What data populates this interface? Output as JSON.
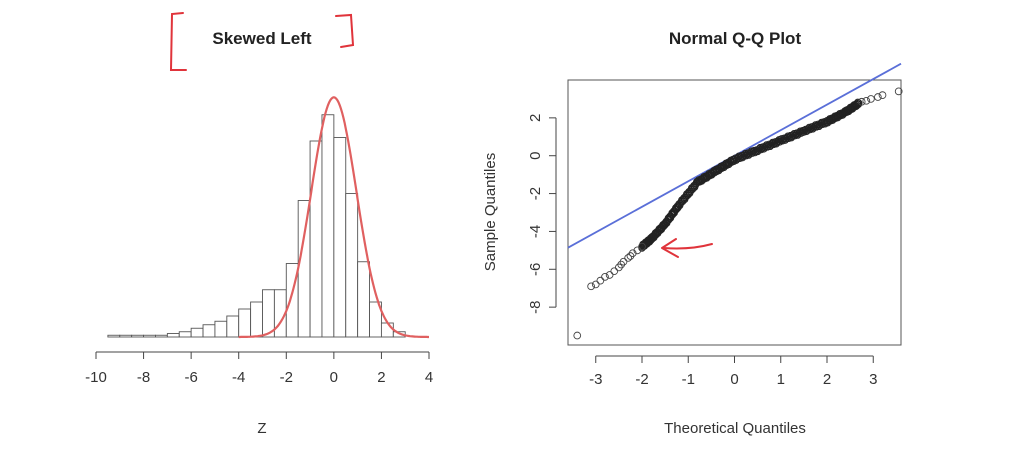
{
  "chart_data": [
    {
      "type": "bar",
      "title": "Skewed Left",
      "xlabel": "Z",
      "ylabel": "",
      "xlim": [
        -10,
        4
      ],
      "x_ticks": [
        "-10",
        "-8",
        "-6",
        "-4",
        "-2",
        "0",
        "2",
        "4"
      ],
      "bin_width": 0.5,
      "bin_starts": [
        -9.5,
        -9.0,
        -8.5,
        -8.0,
        -7.5,
        -7.0,
        -6.5,
        -6.0,
        -5.5,
        -5.0,
        -4.5,
        -4.0,
        -3.5,
        -3.0,
        -2.5,
        -2.0,
        -1.5,
        -1.0,
        -0.5,
        0.0,
        0.5,
        1.0,
        1.5,
        2.0,
        2.5
      ],
      "values": [
        1,
        1,
        1,
        1,
        1,
        2,
        3,
        5,
        7,
        9,
        12,
        16,
        20,
        27,
        27,
        42,
        78,
        112,
        127,
        114,
        82,
        43,
        20,
        8,
        3
      ],
      "density_curve": {
        "color": "#e06060",
        "mean": 0,
        "sd": 0.95,
        "peak": 137,
        "x_range": [
          -4.0,
          4.0
        ]
      }
    },
    {
      "type": "scatter",
      "title": "Normal Q-Q Plot",
      "xlabel": "Theoretical Quantiles",
      "ylabel": "Sample Quantiles",
      "xlim": [
        -3.6,
        3.6
      ],
      "ylim": [
        -10,
        4
      ],
      "x_ticks": [
        "-3",
        "-2",
        "-1",
        "0",
        "1",
        "2",
        "3"
      ],
      "y_ticks": [
        "2",
        "0",
        "-2",
        "-4",
        "-6",
        "-8"
      ],
      "points": [
        [
          -3.4,
          -9.5
        ],
        [
          -3.1,
          -6.9
        ],
        [
          -3.0,
          -6.8
        ],
        [
          -2.9,
          -6.6
        ],
        [
          -2.8,
          -6.4
        ],
        [
          -2.7,
          -6.3
        ],
        [
          -2.6,
          -6.1
        ],
        [
          -2.5,
          -5.9
        ],
        [
          -2.45,
          -5.75
        ],
        [
          -2.4,
          -5.6
        ],
        [
          -2.3,
          -5.4
        ],
        [
          -2.25,
          -5.3
        ],
        [
          -2.2,
          -5.15
        ],
        [
          -2.1,
          -5.0
        ],
        [
          -2.0,
          -4.8
        ]
      ],
      "dense_curve": [
        [
          -2.0,
          -4.8
        ],
        [
          -1.8,
          -4.4
        ],
        [
          -1.5,
          -3.6
        ],
        [
          -1.2,
          -2.6
        ],
        [
          -0.8,
          -1.4
        ],
        [
          -0.4,
          -0.8
        ],
        [
          0.0,
          -0.2
        ],
        [
          0.5,
          0.3
        ],
        [
          1.0,
          0.8
        ],
        [
          1.5,
          1.3
        ],
        [
          2.0,
          1.8
        ],
        [
          2.4,
          2.3
        ],
        [
          2.7,
          2.8
        ]
      ],
      "upper_tail": [
        [
          2.75,
          2.85
        ],
        [
          2.85,
          2.9
        ],
        [
          2.95,
          3.0
        ],
        [
          3.1,
          3.1
        ],
        [
          3.2,
          3.2
        ],
        [
          3.55,
          3.4
        ]
      ],
      "reference_line": {
        "intercept": 0.0,
        "slope": 1.35,
        "color": "#5a6fd8"
      },
      "point_color": "#222222"
    }
  ],
  "annotations": {
    "bracket_color": "#e0343b",
    "arrow_color": "#e0343b"
  }
}
